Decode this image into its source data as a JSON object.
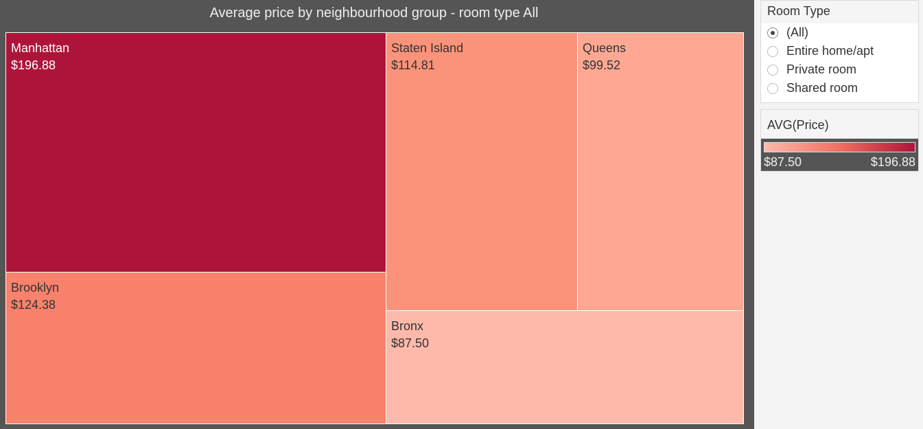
{
  "chart_data": {
    "type": "treemap",
    "title": "Average price by neighbourhood group - room type All",
    "measure": "AVG(Price)",
    "items": [
      {
        "name": "Manhattan",
        "value": 196.88,
        "label": "$196.88",
        "color": "#ad1439"
      },
      {
        "name": "Brooklyn",
        "value": 124.38,
        "label": "$124.38",
        "color": "#f8826b"
      },
      {
        "name": "Staten Island",
        "value": 114.81,
        "label": "$114.81",
        "color": "#fb937b"
      },
      {
        "name": "Queens",
        "value": 99.52,
        "label": "$99.52",
        "color": "#fea894"
      },
      {
        "name": "Bronx",
        "value": 87.5,
        "label": "$87.50",
        "color": "#feb9ab"
      }
    ],
    "color_scale": {
      "min": 87.5,
      "max": 196.88,
      "min_color": "#feb9ab",
      "mid_color": "#f06f60",
      "max_color": "#ad1439"
    }
  },
  "filter": {
    "title": "Room Type",
    "options": [
      {
        "label": "(All)",
        "selected": true
      },
      {
        "label": "Entire home/apt",
        "selected": false
      },
      {
        "label": "Private room",
        "selected": false
      },
      {
        "label": "Shared room",
        "selected": false
      }
    ]
  },
  "legend": {
    "title": "AVG(Price)",
    "min_label": "$87.50",
    "max_label": "$196.88"
  }
}
